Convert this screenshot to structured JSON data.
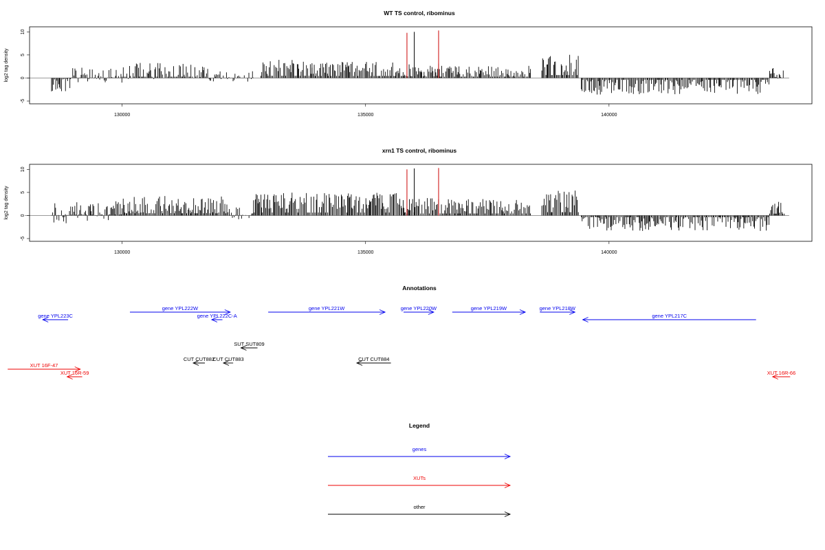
{
  "chart_data": [
    {
      "type": "bar",
      "title": "WT TS control, ribominus",
      "ylabel": "log2 tag density",
      "xlim": [
        128000,
        143700
      ],
      "ylim": [
        -5,
        10.5
      ],
      "xticks": [
        130000,
        135000,
        140000
      ],
      "yticks": [
        -5,
        0,
        5,
        10
      ],
      "xtick_labels": [
        "130000",
        "135000",
        "140000"
      ],
      "ytick_labels": [
        "-5",
        "0",
        "5",
        "10"
      ],
      "colors": {
        "bars": "#000000",
        "highlight": "#cc0000"
      },
      "segments": [
        {
          "from": 128550,
          "to": 128950,
          "mean": -1.5,
          "spread": 1.4
        },
        {
          "from": 128960,
          "to": 130000,
          "mean": 0.5,
          "spread": 1.8
        },
        {
          "from": 130000,
          "to": 131800,
          "mean": 1.5,
          "spread": 1.8
        },
        {
          "from": 131800,
          "to": 132700,
          "mean": 0.3,
          "spread": 1.2
        },
        {
          "from": 132850,
          "to": 133900,
          "mean": 2.4,
          "spread": 1.6
        },
        {
          "from": 133900,
          "to": 135800,
          "mean": 2.2,
          "spread": 1.4
        },
        {
          "from": 135800,
          "to": 136500,
          "mean": 1.8,
          "spread": 1.5
        },
        {
          "from": 136500,
          "to": 138400,
          "mean": 1.5,
          "spread": 1.2
        },
        {
          "from": 138620,
          "to": 139380,
          "mean": 3.2,
          "spread": 2.0
        },
        {
          "from": 139430,
          "to": 143300,
          "mean": -2.0,
          "spread": 1.6
        },
        {
          "from": 143300,
          "to": 143600,
          "mean": 1.2,
          "spread": 1.5
        }
      ],
      "peaks": [
        {
          "x": 135850,
          "y": 9.8,
          "color": "#cc0000"
        },
        {
          "x": 136000,
          "y": 10.0,
          "color": "#000000"
        },
        {
          "x": 136500,
          "y": 10.3,
          "color": "#cc0000"
        }
      ]
    },
    {
      "type": "bar",
      "title": "xrn1 TS control, ribominus",
      "ylabel": "log2 tag density",
      "xlim": [
        128000,
        143700
      ],
      "ylim": [
        -5,
        10.5
      ],
      "xticks": [
        130000,
        135000,
        140000
      ],
      "yticks": [
        -5,
        0,
        5,
        10
      ],
      "xtick_labels": [
        "130000",
        "135000",
        "140000"
      ],
      "ytick_labels": [
        "-5",
        "0",
        "5",
        "10"
      ],
      "colors": {
        "bars": "#000000",
        "highlight": "#cc0000"
      },
      "segments": [
        {
          "from": 128550,
          "to": 128950,
          "mean": 0.5,
          "spread": 2.4
        },
        {
          "from": 128960,
          "to": 130000,
          "mean": 1.0,
          "spread": 2.2
        },
        {
          "from": 130000,
          "to": 132200,
          "mean": 2.4,
          "spread": 2.0
        },
        {
          "from": 132200,
          "to": 132700,
          "mean": 0.5,
          "spread": 1.5
        },
        {
          "from": 132700,
          "to": 135800,
          "mean": 3.2,
          "spread": 1.8
        },
        {
          "from": 135800,
          "to": 136500,
          "mean": 2.2,
          "spread": 1.6
        },
        {
          "from": 136500,
          "to": 138400,
          "mean": 2.2,
          "spread": 1.4
        },
        {
          "from": 138620,
          "to": 139380,
          "mean": 3.6,
          "spread": 2.0
        },
        {
          "from": 139430,
          "to": 143300,
          "mean": -1.8,
          "spread": 1.6
        },
        {
          "from": 143300,
          "to": 143600,
          "mean": 2.0,
          "spread": 1.5
        }
      ],
      "peaks": [
        {
          "x": 135850,
          "y": 10.0,
          "color": "#cc0000"
        },
        {
          "x": 136000,
          "y": 10.2,
          "color": "#000000"
        },
        {
          "x": 136500,
          "y": 10.3,
          "color": "#cc0000"
        }
      ]
    },
    {
      "type": "diagram",
      "title": "Annotations",
      "features": [
        {
          "label": "gene YPL223C",
          "start": 128890,
          "end": 128370,
          "kind": "gene",
          "row": 1
        },
        {
          "label": "gene YPL222W",
          "start": 130160,
          "end": 132220,
          "kind": "gene",
          "row": 0
        },
        {
          "label": "gene YPL222C-A",
          "start": 132060,
          "end": 131840,
          "kind": "gene",
          "row": 1
        },
        {
          "label": "gene YPL221W",
          "start": 133000,
          "end": 135400,
          "kind": "gene",
          "row": 0
        },
        {
          "label": "gene YPL220W",
          "start": 135780,
          "end": 136400,
          "kind": "gene",
          "row": 0
        },
        {
          "label": "gene YPL219W",
          "start": 136780,
          "end": 138280,
          "kind": "gene",
          "row": 0
        },
        {
          "label": "gene YPL218W",
          "start": 138580,
          "end": 139300,
          "kind": "gene",
          "row": 0
        },
        {
          "label": "gene YPL217C",
          "start": 143020,
          "end": 139460,
          "kind": "gene",
          "row": 1
        },
        {
          "label": "SUT SUT809",
          "start": 132780,
          "end": 132440,
          "kind": "other",
          "row": 4
        },
        {
          "label": "CUT CUT882",
          "start": 131700,
          "end": 131460,
          "kind": "other",
          "row": 6
        },
        {
          "label": "CUT CUT883",
          "start": 132280,
          "end": 132080,
          "kind": "other",
          "row": 6
        },
        {
          "label": "CUT CUT884",
          "start": 135520,
          "end": 134820,
          "kind": "other",
          "row": 6
        },
        {
          "label": "XUT 16F-47",
          "start": 127650,
          "end": 129140,
          "kind": "xut",
          "row": 7
        },
        {
          "label": "XUT 16R-59",
          "start": 129180,
          "end": 128870,
          "kind": "xut",
          "row": 8
        },
        {
          "label": "XUT 16R-66",
          "start": 143720,
          "end": 143360,
          "kind": "xut",
          "row": 8
        }
      ]
    }
  ],
  "legend": {
    "title": "Legend",
    "items": [
      {
        "label": "genes",
        "color": "#0000ee"
      },
      {
        "label": "XUTs",
        "color": "#ee0000"
      },
      {
        "label": "other",
        "color": "#000000"
      }
    ]
  }
}
